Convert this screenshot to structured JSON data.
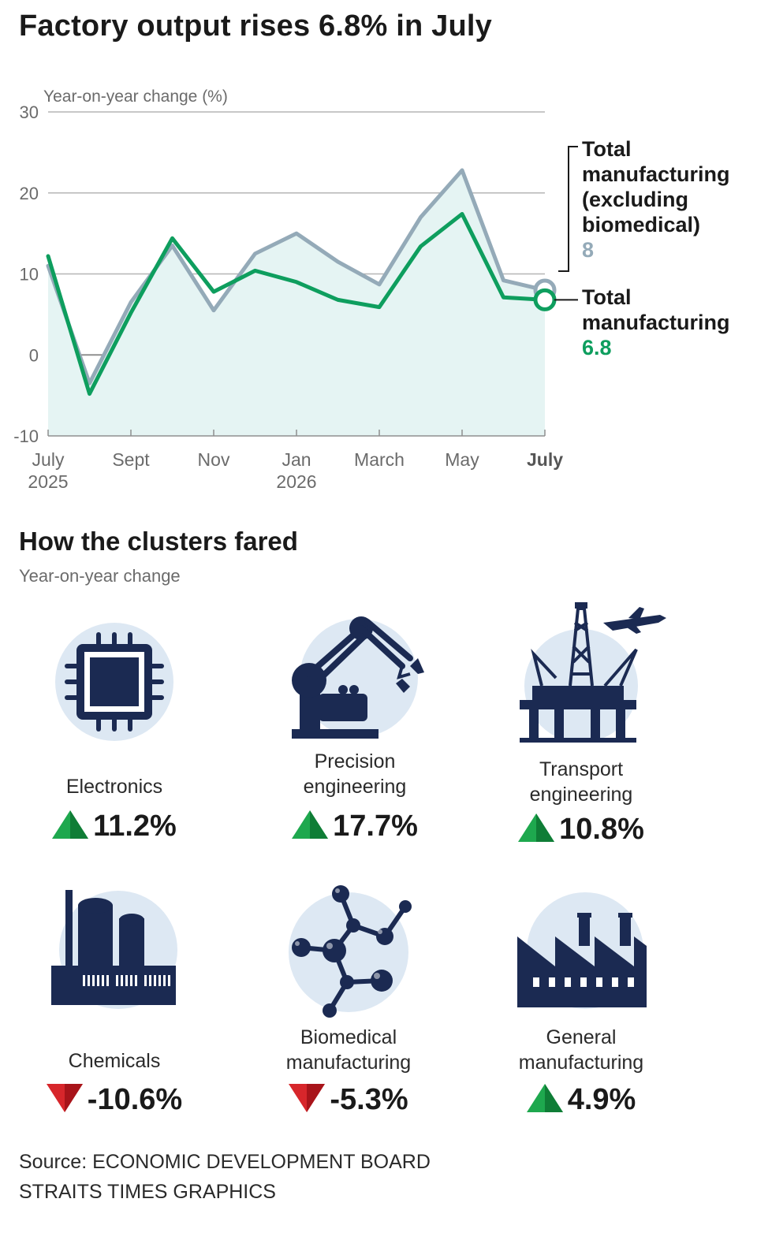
{
  "title": "Factory output rises 6.8% in July",
  "chart_data": {
    "type": "line",
    "ylabel": "Year-on-year change (%)",
    "ylim": [
      -10,
      30
    ],
    "yticks": [
      30,
      20,
      10,
      0,
      -10
    ],
    "x": [
      "Jul 2025",
      "Aug 2025",
      "Sep 2025",
      "Oct 2025",
      "Nov 2025",
      "Dec 2025",
      "Jan 2026",
      "Feb 2026",
      "Mar 2026",
      "Apr 2026",
      "May 2026",
      "Jun 2026",
      "Jul 2026"
    ],
    "xticks": [
      {
        "index": 0,
        "label": "July",
        "sublabel": "2025"
      },
      {
        "index": 2,
        "label": "Sept",
        "sublabel": ""
      },
      {
        "index": 4,
        "label": "Nov",
        "sublabel": ""
      },
      {
        "index": 6,
        "label": "Jan",
        "sublabel": "2026"
      },
      {
        "index": 8,
        "label": "March",
        "sublabel": ""
      },
      {
        "index": 10,
        "label": "May",
        "sublabel": ""
      },
      {
        "index": 12,
        "label": "July",
        "sublabel": "",
        "bold": true
      }
    ],
    "series": [
      {
        "name": "Total manufacturing (excluding biomedical)",
        "label_lines": [
          "Total",
          "manufacturing",
          "(excluding",
          "biomedical)"
        ],
        "last_value_label": "8",
        "color": "#94aab8",
        "values": [
          11,
          -3.5,
          6.5,
          13.5,
          5.5,
          12.5,
          15,
          11.5,
          8.7,
          17,
          22.8,
          9.2,
          8.0
        ]
      },
      {
        "name": "Total manufacturing",
        "label_lines": [
          "Total",
          "manufacturing"
        ],
        "last_value_label": "6.8",
        "color": "#0e9e5e",
        "values": [
          12.2,
          -4.8,
          5.2,
          14.4,
          7.8,
          10.4,
          9,
          6.8,
          5.9,
          13.4,
          17.4,
          7.1,
          6.8
        ]
      }
    ],
    "area_color": "#e5f4f3",
    "grid": true
  },
  "clusters": {
    "title": "How the clusters fared",
    "subtitle": "Year-on-year change",
    "items": [
      {
        "label_lines": [
          "Electronics"
        ],
        "value": "11.2%",
        "direction": "up",
        "icon": "microchip-icon"
      },
      {
        "label_lines": [
          "Precision",
          "engineering"
        ],
        "value": "17.7%",
        "direction": "up",
        "icon": "robot-arm-icon"
      },
      {
        "label_lines": [
          "Transport",
          "engineering"
        ],
        "value": "10.8%",
        "direction": "up",
        "icon": "oil-rig-plane-icon"
      },
      {
        "label_lines": [
          "Chemicals"
        ],
        "value": "-10.6%",
        "direction": "down",
        "icon": "chemical-plant-icon"
      },
      {
        "label_lines": [
          "Biomedical",
          "manufacturing"
        ],
        "value": "-5.3%",
        "direction": "down",
        "icon": "molecule-icon"
      },
      {
        "label_lines": [
          "General",
          "manufacturing"
        ],
        "value": "4.9%",
        "direction": "up",
        "icon": "factory-icon"
      }
    ]
  },
  "footer": {
    "source": "Source: ECONOMIC DEVELOPMENT BOARD",
    "credit": "STRAITS TIMES GRAPHICS"
  },
  "colors": {
    "navy": "#1b2a52",
    "icon_bg": "#dde8f3",
    "up": "#1ea84e",
    "down": "#d7262b"
  }
}
